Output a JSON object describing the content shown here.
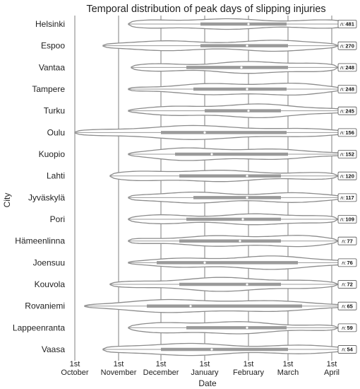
{
  "chart_data": {
    "type": "violin",
    "title": "Temporal distribution of peak days of slipping injuries",
    "xlabel": "Date",
    "ylabel": "City",
    "x_ticks": [
      {
        "date": "2000-10-01",
        "label": [
          "1st",
          "October"
        ]
      },
      {
        "date": "2000-11-01",
        "label": [
          "1st",
          "November"
        ]
      },
      {
        "date": "2000-12-01",
        "label": [
          "1st",
          "December"
        ]
      },
      {
        "date": "2001-01-01",
        "label": [
          "1st",
          "January"
        ]
      },
      {
        "date": "2001-02-01",
        "label": [
          "1st",
          "February"
        ]
      },
      {
        "date": "2001-03-01",
        "label": [
          "1st",
          "March"
        ]
      },
      {
        "date": "2001-04-01",
        "label": [
          "1st",
          "April"
        ]
      }
    ],
    "x_range": [
      "2000-10-01",
      "2001-04-12"
    ],
    "n_prefix": "n:",
    "series": [
      {
        "city": "Helsinki",
        "n": 481,
        "min": "2000-11-08",
        "q1": "2000-12-29",
        "median": "2001-02-01",
        "q3": "2001-02-28",
        "max": "2001-04-15"
      },
      {
        "city": "Espoo",
        "n": 270,
        "min": "2000-10-21",
        "q1": "2000-12-29",
        "median": "2001-01-31",
        "q3": "2001-03-01",
        "max": "2001-04-05"
      },
      {
        "city": "Vantaa",
        "n": 248,
        "min": "2000-11-10",
        "q1": "2000-12-19",
        "median": "2001-01-27",
        "q3": "2001-03-01",
        "max": "2001-04-05"
      },
      {
        "city": "Tampere",
        "n": 248,
        "min": "2000-11-08",
        "q1": "2000-12-24",
        "median": "2001-01-31",
        "q3": "2001-02-28",
        "max": "2001-04-08"
      },
      {
        "city": "Turku",
        "n": 245,
        "min": "2000-11-08",
        "q1": "2001-01-01",
        "median": "2001-02-01",
        "q3": "2001-02-24",
        "max": "2001-04-10"
      },
      {
        "city": "Oulu",
        "n": 156,
        "min": "2000-10-01",
        "q1": "2000-12-01",
        "median": "2001-01-01",
        "q3": "2001-02-28",
        "max": "2001-04-12"
      },
      {
        "city": "Kuopio",
        "n": 152,
        "min": "2000-11-08",
        "q1": "2000-12-11",
        "median": "2001-01-06",
        "q3": "2001-03-01",
        "max": "2001-04-10"
      },
      {
        "city": "Lahti",
        "n": 120,
        "min": "2000-10-26",
        "q1": "2000-12-14",
        "median": "2001-01-31",
        "q3": "2001-02-24",
        "max": "2001-04-05"
      },
      {
        "city": "Jyväskylä",
        "n": 117,
        "min": "2000-11-08",
        "q1": "2000-12-24",
        "median": "2001-01-31",
        "q3": "2001-02-24",
        "max": "2001-04-08"
      },
      {
        "city": "Pori",
        "n": 109,
        "min": "2000-11-08",
        "q1": "2000-12-19",
        "median": "2001-01-28",
        "q3": "2001-02-24",
        "max": "2001-04-05"
      },
      {
        "city": "Hämeenlinna",
        "n": 77,
        "min": "2000-11-08",
        "q1": "2000-12-14",
        "median": "2001-01-26",
        "q3": "2001-02-24",
        "max": "2001-04-05"
      },
      {
        "city": "Joensuu",
        "n": 76,
        "min": "2000-11-08",
        "q1": "2000-11-28",
        "median": "2001-01-01",
        "q3": "2001-03-08",
        "max": "2001-04-12"
      },
      {
        "city": "Kouvola",
        "n": 72,
        "min": "2000-10-26",
        "q1": "2000-12-14",
        "median": "2001-01-31",
        "q3": "2001-02-24",
        "max": "2001-04-05"
      },
      {
        "city": "Rovaniemi",
        "n": 65,
        "min": "2000-10-08",
        "q1": "2000-11-21",
        "median": "2000-12-22",
        "q3": "2001-03-11",
        "max": "2001-04-12"
      },
      {
        "city": "Lappeenranta",
        "n": 59,
        "min": "2000-11-08",
        "q1": "2000-12-19",
        "median": "2001-01-31",
        "q3": "2001-02-28",
        "max": "2001-04-05"
      },
      {
        "city": "Vaasa",
        "n": 54,
        "min": "2000-10-21",
        "q1": "2000-12-01",
        "median": "2001-01-06",
        "q3": "2001-03-01",
        "max": "2001-04-12"
      }
    ],
    "colors": {
      "violin_stroke": "#8c8c8c",
      "box": "#9a9a9a",
      "median": "#ffffff",
      "grid": "#7f7f7f",
      "text": "#222222"
    },
    "grid": "vertical"
  }
}
